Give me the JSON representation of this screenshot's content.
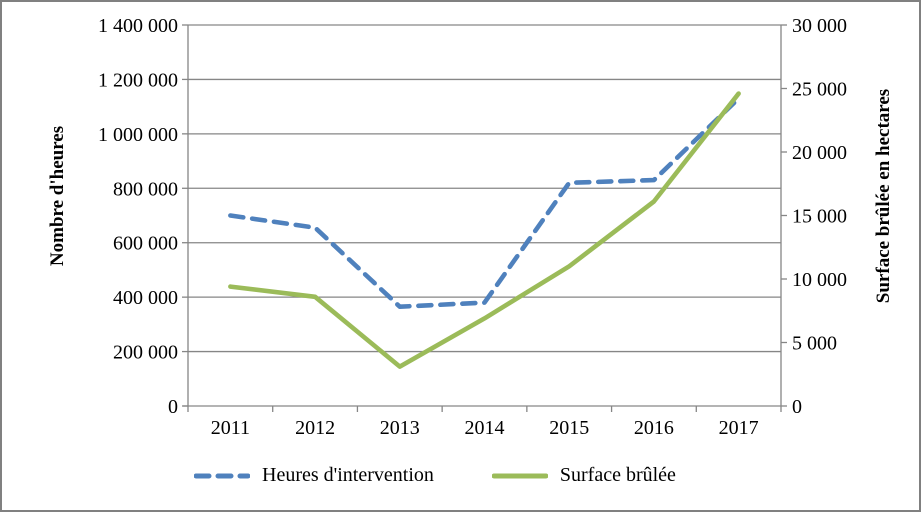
{
  "frame": {
    "background_color": "#ffffff",
    "border_color": "#808080"
  },
  "chart_data": {
    "type": "line",
    "title": "",
    "categories": [
      "2011",
      "2012",
      "2013",
      "2014",
      "2015",
      "2016",
      "2017"
    ],
    "series": [
      {
        "name": "Heures d'intervention",
        "axis": "left",
        "color": "#4f81bd",
        "style": "dashed",
        "values": [
          700000,
          655000,
          365000,
          380000,
          820000,
          830000,
          1130000
        ]
      },
      {
        "name": "Surface brûlée",
        "axis": "right",
        "color": "#9bbb59",
        "style": "solid",
        "values": [
          9400,
          8600,
          3100,
          6900,
          11000,
          16100,
          24600
        ]
      }
    ],
    "left_axis": {
      "title": "Nombre d'heures",
      "min": 0,
      "max": 1400000,
      "step": 200000,
      "tick_labels": [
        "0",
        "200 000",
        "400 000",
        "600 000",
        "800 000",
        "1 000 000",
        "1 200 000",
        "1 400 000"
      ]
    },
    "right_axis": {
      "title": "Surface brûlée en hectares",
      "min": 0,
      "max": 30000,
      "step": 5000,
      "tick_labels": [
        "0",
        "5 000",
        "10 000",
        "15 000",
        "20 000",
        "25 000",
        "30 000"
      ]
    },
    "grid": true,
    "legend_position": "bottom",
    "gridline_color": "#868686",
    "axis_color": "#868686",
    "text_color": "#000000"
  }
}
